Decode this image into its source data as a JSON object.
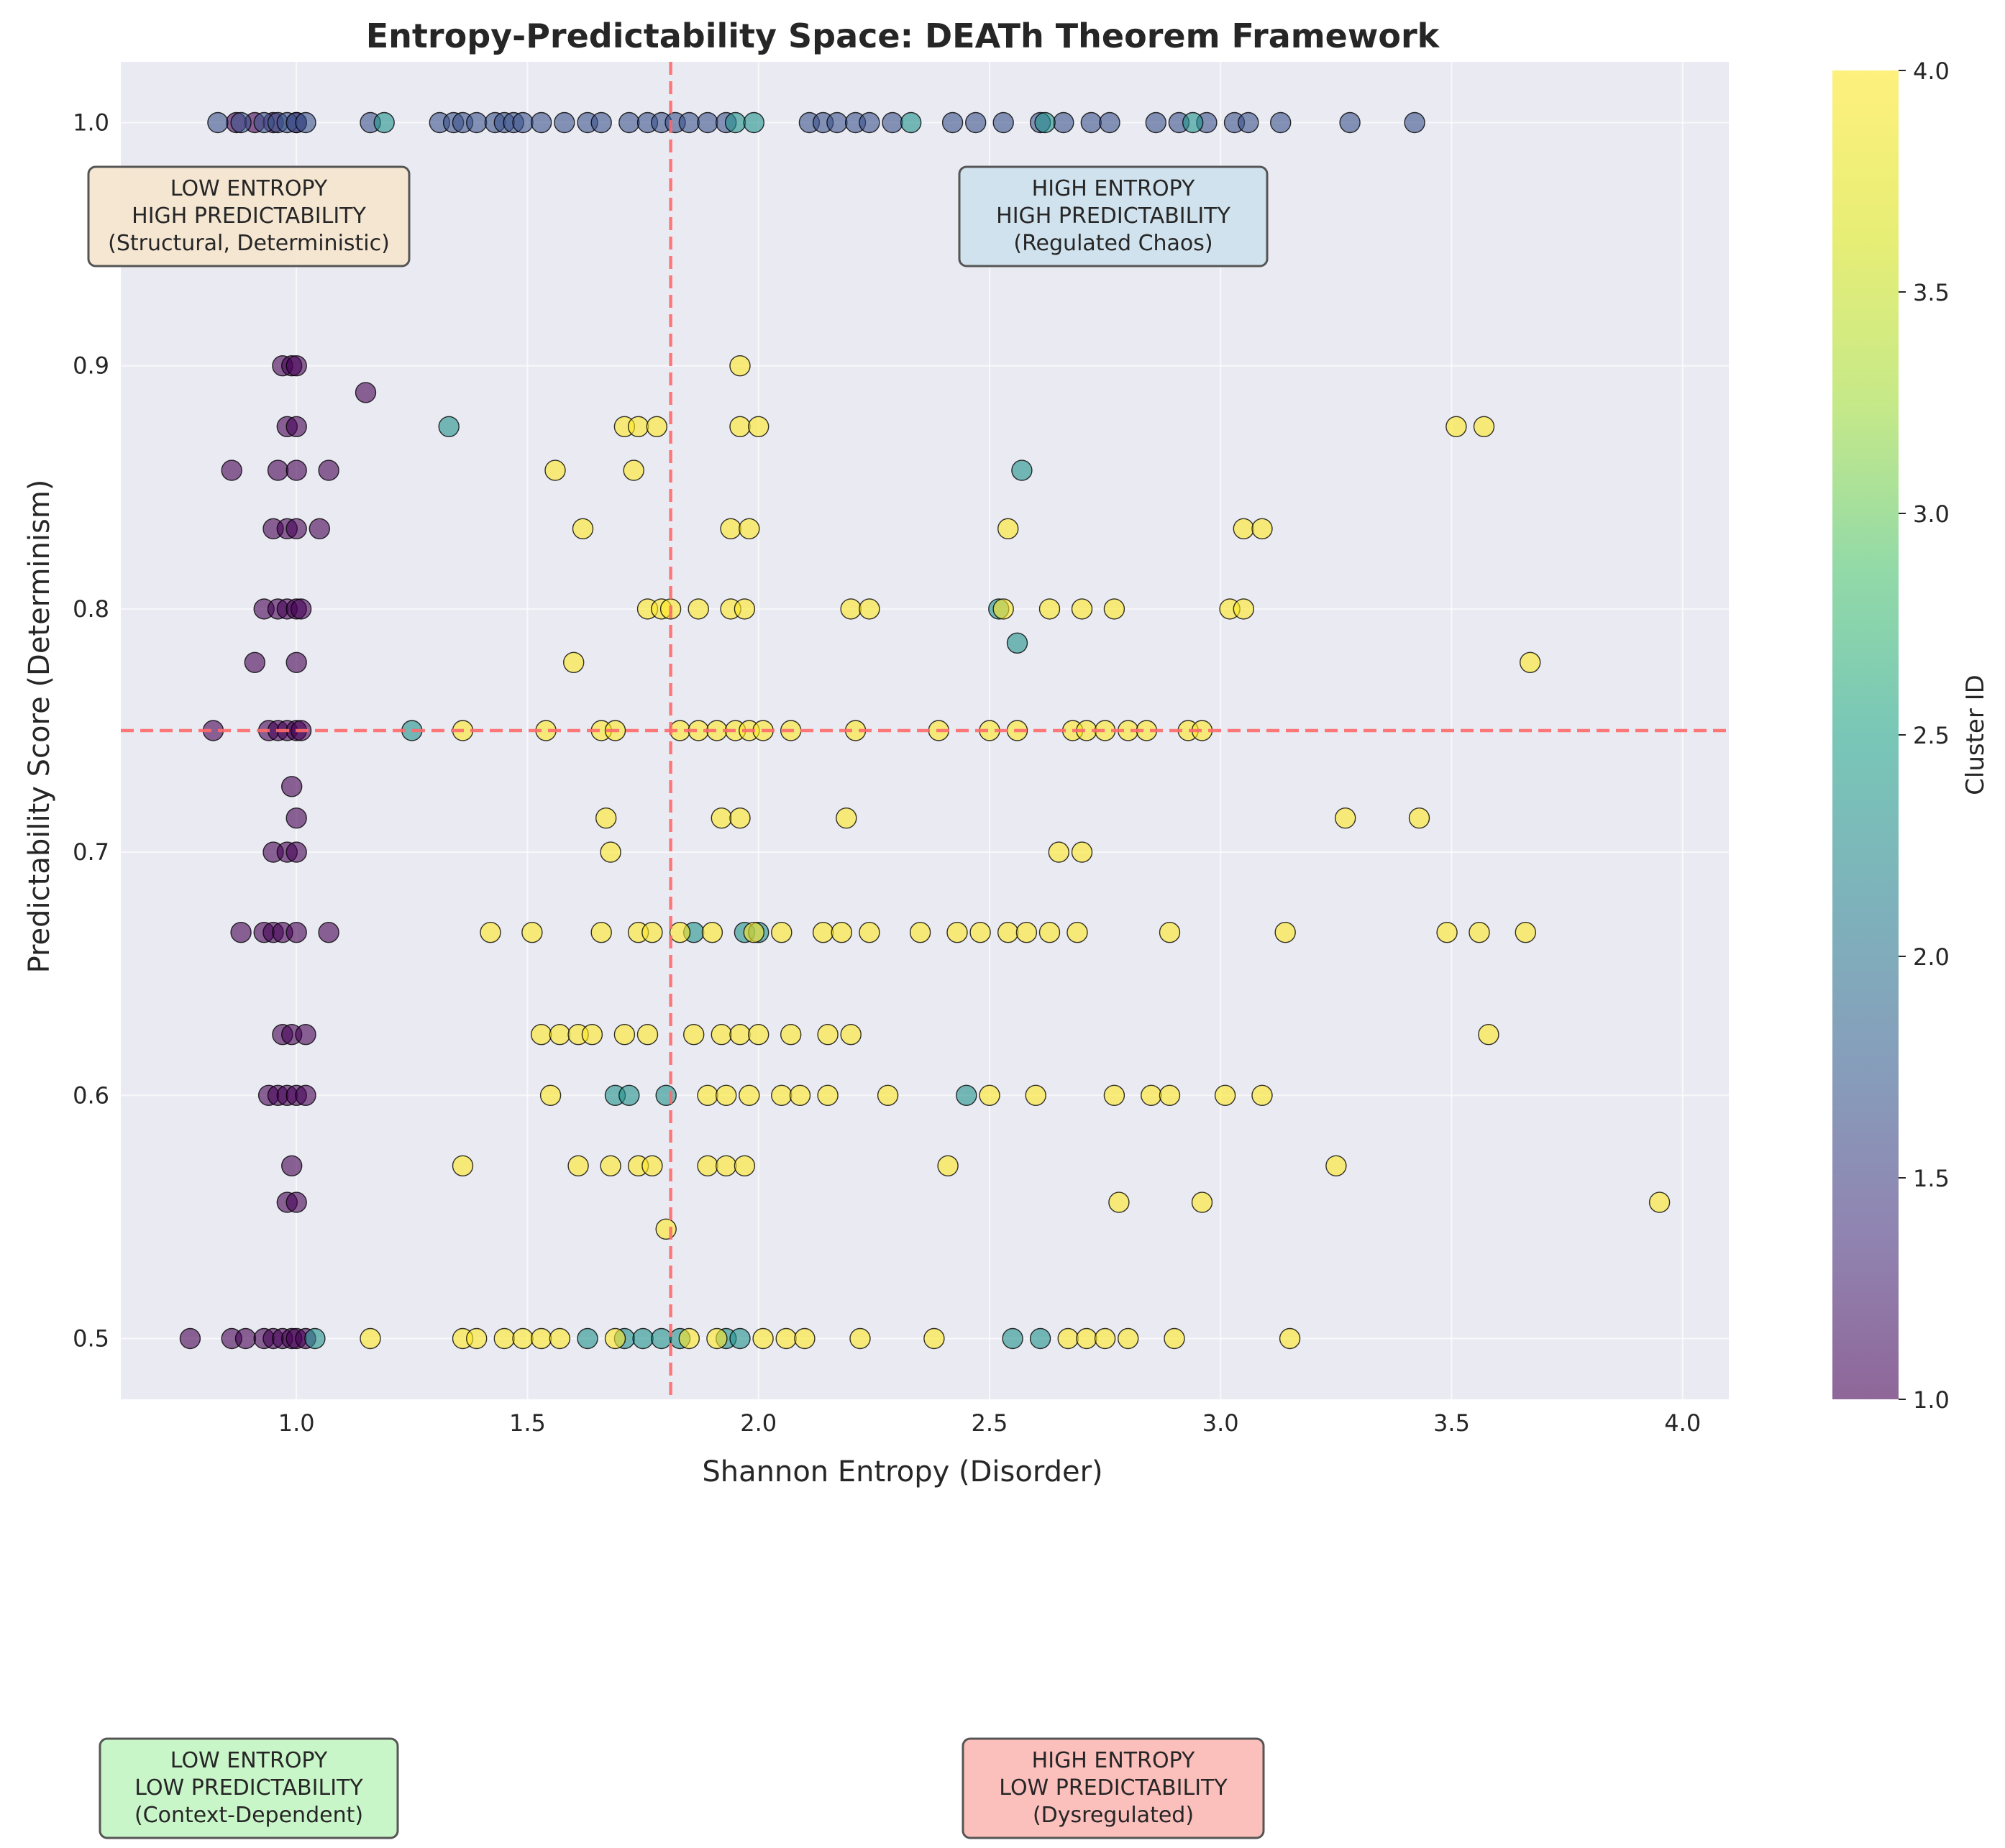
{
  "chart_data": {
    "type": "scatter",
    "title": "Entropy-Predictability Space: DEATh Theorem Framework",
    "xlabel": "Shannon Entropy (Disorder)",
    "ylabel": "Predictability Score (Determinism)",
    "xlim": [
      0.62,
      4.1
    ],
    "ylim": [
      0.475,
      1.025
    ],
    "xticks": [
      1.0,
      1.5,
      2.0,
      2.5,
      3.0,
      3.5,
      4.0
    ],
    "xtick_labels": [
      "1.0",
      "1.5",
      "2.0",
      "2.5",
      "3.0",
      "3.5",
      "4.0"
    ],
    "yticks": [
      0.5,
      0.6,
      0.7,
      0.8,
      0.9,
      1.0
    ],
    "ytick_labels": [
      "0.5",
      "0.6",
      "0.7",
      "0.8",
      "0.9",
      "1.0"
    ],
    "grid": true,
    "reference_lines": {
      "x": 1.81,
      "y": 0.75,
      "color": "#ff6b6b",
      "style": "dashed"
    },
    "colorbar": {
      "label": "Cluster ID",
      "range": [
        1.0,
        4.0
      ],
      "ticks": [
        1.0,
        1.5,
        2.0,
        2.5,
        3.0,
        3.5,
        4.0
      ],
      "tick_labels": [
        "1.0",
        "1.5",
        "2.0",
        "2.5",
        "3.0",
        "3.5",
        "4.0"
      ],
      "colormap": "viridis"
    },
    "series": [
      {
        "cluster": 1,
        "color": "#440154",
        "points": [
          [
            0.87,
            1.0
          ],
          [
            0.91,
            1.0
          ],
          [
            0.95,
            1.0
          ],
          [
            1.0,
            1.0
          ],
          [
            0.97,
            0.9
          ],
          [
            0.99,
            0.9
          ],
          [
            1.0,
            0.9
          ],
          [
            0.98,
            0.875
          ],
          [
            1.0,
            0.875
          ],
          [
            1.15,
            0.889
          ],
          [
            0.86,
            0.857
          ],
          [
            0.96,
            0.857
          ],
          [
            1.0,
            0.857
          ],
          [
            1.07,
            0.857
          ],
          [
            0.95,
            0.833
          ],
          [
            0.98,
            0.833
          ],
          [
            1.0,
            0.833
          ],
          [
            1.05,
            0.833
          ],
          [
            0.93,
            0.8
          ],
          [
            0.96,
            0.8
          ],
          [
            0.98,
            0.8
          ],
          [
            1.0,
            0.8
          ],
          [
            1.01,
            0.8
          ],
          [
            0.91,
            0.778
          ],
          [
            1.0,
            0.778
          ],
          [
            0.82,
            0.75
          ],
          [
            0.94,
            0.75
          ],
          [
            0.96,
            0.75
          ],
          [
            0.98,
            0.75
          ],
          [
            1.0,
            0.75
          ],
          [
            1.01,
            0.75
          ],
          [
            0.99,
            0.727
          ],
          [
            1.0,
            0.714
          ],
          [
            0.95,
            0.7
          ],
          [
            0.98,
            0.7
          ],
          [
            1.0,
            0.7
          ],
          [
            0.88,
            0.667
          ],
          [
            0.93,
            0.667
          ],
          [
            0.95,
            0.667
          ],
          [
            0.97,
            0.667
          ],
          [
            1.0,
            0.667
          ],
          [
            1.07,
            0.667
          ],
          [
            0.97,
            0.625
          ],
          [
            0.99,
            0.625
          ],
          [
            1.02,
            0.625
          ],
          [
            0.94,
            0.6
          ],
          [
            0.96,
            0.6
          ],
          [
            0.98,
            0.6
          ],
          [
            1.0,
            0.6
          ],
          [
            1.02,
            0.6
          ],
          [
            0.99,
            0.571
          ],
          [
            0.98,
            0.556
          ],
          [
            1.0,
            0.556
          ],
          [
            0.77,
            0.5
          ],
          [
            0.86,
            0.5
          ],
          [
            0.89,
            0.5
          ],
          [
            0.93,
            0.5
          ],
          [
            0.95,
            0.5
          ],
          [
            0.97,
            0.5
          ],
          [
            0.99,
            0.5
          ],
          [
            1.0,
            0.5
          ],
          [
            1.02,
            0.5
          ]
        ]
      },
      {
        "cluster": 2,
        "color": "#3b528b",
        "points": [
          [
            0.83,
            1.0
          ],
          [
            0.88,
            1.0
          ],
          [
            0.93,
            1.0
          ],
          [
            0.96,
            1.0
          ],
          [
            0.98,
            1.0
          ],
          [
            1.0,
            1.0
          ],
          [
            1.02,
            1.0
          ],
          [
            1.16,
            1.0
          ],
          [
            1.31,
            1.0
          ],
          [
            1.34,
            1.0
          ],
          [
            1.36,
            1.0
          ],
          [
            1.39,
            1.0
          ],
          [
            1.43,
            1.0
          ],
          [
            1.45,
            1.0
          ],
          [
            1.47,
            1.0
          ],
          [
            1.49,
            1.0
          ],
          [
            1.53,
            1.0
          ],
          [
            1.58,
            1.0
          ],
          [
            1.63,
            1.0
          ],
          [
            1.66,
            1.0
          ],
          [
            1.72,
            1.0
          ],
          [
            1.76,
            1.0
          ],
          [
            1.79,
            1.0
          ],
          [
            1.82,
            1.0
          ],
          [
            1.85,
            1.0
          ],
          [
            1.89,
            1.0
          ],
          [
            1.93,
            1.0
          ],
          [
            2.11,
            1.0
          ],
          [
            2.14,
            1.0
          ],
          [
            2.17,
            1.0
          ],
          [
            2.21,
            1.0
          ],
          [
            2.24,
            1.0
          ],
          [
            2.29,
            1.0
          ],
          [
            2.42,
            1.0
          ],
          [
            2.47,
            1.0
          ],
          [
            2.53,
            1.0
          ],
          [
            2.61,
            1.0
          ],
          [
            2.66,
            1.0
          ],
          [
            2.72,
            1.0
          ],
          [
            2.76,
            1.0
          ],
          [
            2.86,
            1.0
          ],
          [
            2.91,
            1.0
          ],
          [
            2.97,
            1.0
          ],
          [
            3.03,
            1.0
          ],
          [
            3.06,
            1.0
          ],
          [
            3.13,
            1.0
          ],
          [
            3.28,
            1.0
          ],
          [
            3.42,
            1.0
          ]
        ]
      },
      {
        "cluster": 3,
        "color": "#21918c",
        "points": [
          [
            1.19,
            1.0
          ],
          [
            1.95,
            1.0
          ],
          [
            1.99,
            1.0
          ],
          [
            2.33,
            1.0
          ],
          [
            2.62,
            1.0
          ],
          [
            2.94,
            1.0
          ],
          [
            1.33,
            0.875
          ],
          [
            2.57,
            0.857
          ],
          [
            2.52,
            0.8
          ],
          [
            2.56,
            0.786
          ],
          [
            1.25,
            0.75
          ],
          [
            1.97,
            0.667
          ],
          [
            2.0,
            0.667
          ],
          [
            1.86,
            0.667
          ],
          [
            1.69,
            0.6
          ],
          [
            1.72,
            0.6
          ],
          [
            1.8,
            0.6
          ],
          [
            2.45,
            0.6
          ],
          [
            1.04,
            0.5
          ],
          [
            1.63,
            0.5
          ],
          [
            1.71,
            0.5
          ],
          [
            1.75,
            0.5
          ],
          [
            1.79,
            0.5
          ],
          [
            1.83,
            0.5
          ],
          [
            1.93,
            0.5
          ],
          [
            1.96,
            0.5
          ],
          [
            2.55,
            0.5
          ],
          [
            2.61,
            0.5
          ]
        ]
      },
      {
        "cluster": 4,
        "color": "#fde725",
        "points": [
          [
            1.96,
            0.9
          ],
          [
            1.71,
            0.875
          ],
          [
            1.74,
            0.875
          ],
          [
            1.78,
            0.875
          ],
          [
            1.96,
            0.875
          ],
          [
            2.0,
            0.875
          ],
          [
            3.51,
            0.875
          ],
          [
            3.57,
            0.875
          ],
          [
            1.56,
            0.857
          ],
          [
            1.73,
            0.857
          ],
          [
            1.62,
            0.833
          ],
          [
            1.94,
            0.833
          ],
          [
            1.98,
            0.833
          ],
          [
            2.54,
            0.833
          ],
          [
            3.05,
            0.833
          ],
          [
            3.09,
            0.833
          ],
          [
            1.76,
            0.8
          ],
          [
            1.79,
            0.8
          ],
          [
            1.81,
            0.8
          ],
          [
            1.87,
            0.8
          ],
          [
            1.94,
            0.8
          ],
          [
            1.97,
            0.8
          ],
          [
            2.2,
            0.8
          ],
          [
            2.24,
            0.8
          ],
          [
            2.53,
            0.8
          ],
          [
            2.63,
            0.8
          ],
          [
            2.7,
            0.8
          ],
          [
            2.77,
            0.8
          ],
          [
            3.02,
            0.8
          ],
          [
            3.05,
            0.8
          ],
          [
            1.6,
            0.778
          ],
          [
            3.67,
            0.778
          ],
          [
            1.36,
            0.75
          ],
          [
            1.54,
            0.75
          ],
          [
            1.66,
            0.75
          ],
          [
            1.69,
            0.75
          ],
          [
            1.83,
            0.75
          ],
          [
            1.87,
            0.75
          ],
          [
            1.91,
            0.75
          ],
          [
            1.95,
            0.75
          ],
          [
            1.98,
            0.75
          ],
          [
            2.01,
            0.75
          ],
          [
            2.07,
            0.75
          ],
          [
            2.21,
            0.75
          ],
          [
            2.39,
            0.75
          ],
          [
            2.5,
            0.75
          ],
          [
            2.56,
            0.75
          ],
          [
            2.68,
            0.75
          ],
          [
            2.71,
            0.75
          ],
          [
            2.75,
            0.75
          ],
          [
            2.8,
            0.75
          ],
          [
            2.84,
            0.75
          ],
          [
            2.93,
            0.75
          ],
          [
            2.96,
            0.75
          ],
          [
            1.67,
            0.714
          ],
          [
            1.92,
            0.714
          ],
          [
            1.96,
            0.714
          ],
          [
            2.19,
            0.714
          ],
          [
            3.27,
            0.714
          ],
          [
            3.43,
            0.714
          ],
          [
            1.68,
            0.7
          ],
          [
            2.65,
            0.7
          ],
          [
            2.7,
            0.7
          ],
          [
            1.42,
            0.667
          ],
          [
            1.51,
            0.667
          ],
          [
            1.66,
            0.667
          ],
          [
            1.74,
            0.667
          ],
          [
            1.77,
            0.667
          ],
          [
            1.83,
            0.667
          ],
          [
            1.9,
            0.667
          ],
          [
            1.99,
            0.667
          ],
          [
            2.05,
            0.667
          ],
          [
            2.14,
            0.667
          ],
          [
            2.18,
            0.667
          ],
          [
            2.24,
            0.667
          ],
          [
            2.35,
            0.667
          ],
          [
            2.43,
            0.667
          ],
          [
            2.48,
            0.667
          ],
          [
            2.54,
            0.667
          ],
          [
            2.58,
            0.667
          ],
          [
            2.63,
            0.667
          ],
          [
            2.69,
            0.667
          ],
          [
            2.89,
            0.667
          ],
          [
            3.14,
            0.667
          ],
          [
            3.49,
            0.667
          ],
          [
            3.56,
            0.667
          ],
          [
            3.66,
            0.667
          ],
          [
            1.53,
            0.625
          ],
          [
            1.57,
            0.625
          ],
          [
            1.61,
            0.625
          ],
          [
            1.64,
            0.625
          ],
          [
            1.71,
            0.625
          ],
          [
            1.76,
            0.625
          ],
          [
            1.86,
            0.625
          ],
          [
            1.92,
            0.625
          ],
          [
            1.96,
            0.625
          ],
          [
            2.0,
            0.625
          ],
          [
            2.07,
            0.625
          ],
          [
            2.15,
            0.625
          ],
          [
            2.2,
            0.625
          ],
          [
            3.58,
            0.625
          ],
          [
            1.55,
            0.6
          ],
          [
            1.89,
            0.6
          ],
          [
            1.93,
            0.6
          ],
          [
            1.98,
            0.6
          ],
          [
            2.05,
            0.6
          ],
          [
            2.09,
            0.6
          ],
          [
            2.15,
            0.6
          ],
          [
            2.28,
            0.6
          ],
          [
            2.5,
            0.6
          ],
          [
            2.6,
            0.6
          ],
          [
            2.77,
            0.6
          ],
          [
            2.85,
            0.6
          ],
          [
            2.89,
            0.6
          ],
          [
            3.01,
            0.6
          ],
          [
            3.09,
            0.6
          ],
          [
            1.36,
            0.571
          ],
          [
            1.61,
            0.571
          ],
          [
            1.68,
            0.571
          ],
          [
            1.74,
            0.571
          ],
          [
            1.77,
            0.571
          ],
          [
            1.89,
            0.571
          ],
          [
            1.93,
            0.571
          ],
          [
            1.97,
            0.571
          ],
          [
            2.41,
            0.571
          ],
          [
            3.25,
            0.571
          ],
          [
            2.78,
            0.556
          ],
          [
            2.96,
            0.556
          ],
          [
            3.95,
            0.556
          ],
          [
            1.8,
            0.545
          ],
          [
            1.16,
            0.5
          ],
          [
            1.36,
            0.5
          ],
          [
            1.39,
            0.5
          ],
          [
            1.45,
            0.5
          ],
          [
            1.49,
            0.5
          ],
          [
            1.53,
            0.5
          ],
          [
            1.57,
            0.5
          ],
          [
            1.69,
            0.5
          ],
          [
            1.85,
            0.5
          ],
          [
            1.91,
            0.5
          ],
          [
            2.01,
            0.5
          ],
          [
            2.06,
            0.5
          ],
          [
            2.1,
            0.5
          ],
          [
            2.22,
            0.5
          ],
          [
            2.38,
            0.5
          ],
          [
            2.67,
            0.5
          ],
          [
            2.71,
            0.5
          ],
          [
            2.75,
            0.5
          ],
          [
            2.8,
            0.5
          ],
          [
            2.9,
            0.5
          ],
          [
            3.15,
            0.5
          ]
        ]
      }
    ],
    "annotations": [
      {
        "id": "q1",
        "lines": [
          "LOW ENTROPY",
          "HIGH PREDICTABILITY",
          "(Structural, Deterministic)"
        ],
        "fill": "#f5e6d0"
      },
      {
        "id": "q2",
        "lines": [
          "HIGH ENTROPY",
          "HIGH PREDICTABILITY",
          "(Regulated Chaos)"
        ],
        "fill": "#cfe2ec"
      },
      {
        "id": "q3",
        "lines": [
          "LOW ENTROPY",
          "LOW PREDICTABILITY",
          "(Context-Dependent)"
        ],
        "fill": "#c6f5c6"
      },
      {
        "id": "q4",
        "lines": [
          "HIGH ENTROPY",
          "LOW PREDICTABILITY",
          "(Dysregulated)"
        ],
        "fill": "#fbbcb8"
      }
    ]
  }
}
